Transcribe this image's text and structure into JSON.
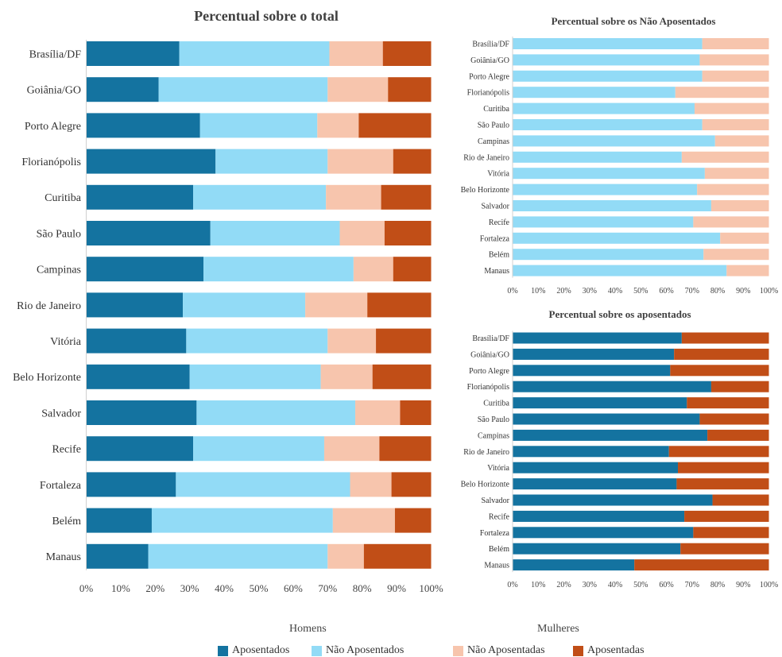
{
  "colors": {
    "aposentados": "#1473a0",
    "nao_aposentados": "#92dbf6",
    "nao_aposentadas": "#f7c5ad",
    "aposentadas": "#c14e17",
    "axis_text": "#333333",
    "grid": "#d9d9d9"
  },
  "legend": {
    "homens_label": "Homens",
    "mulheres_label": "Mulheres",
    "aposentados": "Aposentados",
    "nao_aposentados": "Não Aposentados",
    "nao_aposentadas": "Não Aposentadas",
    "aposentadas": "Aposentadas"
  },
  "chart_data": [
    {
      "id": "total",
      "type": "bar",
      "orientation": "horizontal",
      "stacked": true,
      "title": "Percentual sobre o total",
      "xlim": [
        0,
        100
      ],
      "x_ticks": [
        "0%",
        "10%",
        "20%",
        "30%",
        "40%",
        "50%",
        "60%",
        "70%",
        "80%",
        "90%",
        "100%"
      ],
      "grid": false,
      "categories": [
        "Brasília/DF",
        "Goiânia/GO",
        "Porto Alegre",
        "Florianópolis",
        "Curitiba",
        "São Paulo",
        "Campinas",
        "Rio de Janeiro",
        "Vitória",
        "Belo Horizonte",
        "Salvador",
        "Recife",
        "Fortaleza",
        "Belém",
        "Manaus"
      ],
      "series": [
        {
          "name": "Aposentados",
          "color_key": "aposentados",
          "values": [
            27,
            21,
            33,
            37.5,
            31,
            36,
            34,
            28,
            29,
            30,
            32,
            31,
            26,
            19,
            18
          ]
        },
        {
          "name": "Não Aposentados",
          "color_key": "nao_aposentados",
          "values": [
            43.5,
            49,
            34,
            32.5,
            38.5,
            37.5,
            43.5,
            35.5,
            41,
            38,
            46,
            38,
            50.5,
            52.5,
            52
          ]
        },
        {
          "name": "Não Aposentadas",
          "color_key": "nao_aposentadas",
          "values": [
            15.5,
            17.5,
            12,
            19,
            16,
            13,
            11.5,
            18,
            14,
            15,
            13,
            16,
            12,
            18,
            10.5
          ]
        },
        {
          "name": "Aposentadas",
          "color_key": "aposentadas",
          "values": [
            14,
            12.5,
            21,
            11,
            14.5,
            13.5,
            11,
            18.5,
            16,
            17,
            9,
            15,
            11.5,
            10.5,
            19.5
          ]
        }
      ]
    },
    {
      "id": "nao_aposentados",
      "type": "bar",
      "orientation": "horizontal",
      "stacked": true,
      "title": "Percentual sobre os Não Aposentados",
      "xlim": [
        0,
        100
      ],
      "x_ticks": [
        "0%",
        "10%",
        "20%",
        "30%",
        "40%",
        "50%",
        "60%",
        "70%",
        "80%",
        "90%",
        "100%"
      ],
      "grid": false,
      "categories": [
        "Brasília/DF",
        "Goiânia/GO",
        "Porto Alegre",
        "Florianópolis",
        "Curitiba",
        "São Paulo",
        "Campinas",
        "Rio de Janeiro",
        "Vitória",
        "Belo Horizonte",
        "Salvador",
        "Recife",
        "Fortaleza",
        "Belém",
        "Manaus"
      ],
      "series": [
        {
          "name": "Não Aposentados",
          "color_key": "nao_aposentados",
          "values": [
            74,
            73,
            74,
            63.5,
            71,
            74,
            79,
            66,
            75,
            72,
            77.5,
            70.5,
            81,
            74.5,
            83.5
          ]
        },
        {
          "name": "Não Aposentadas",
          "color_key": "nao_aposentadas",
          "values": [
            26,
            27,
            26,
            36.5,
            29,
            26,
            21,
            34,
            25,
            28,
            22.5,
            29.5,
            19,
            25.5,
            16.5
          ]
        }
      ]
    },
    {
      "id": "aposentados",
      "type": "bar",
      "orientation": "horizontal",
      "stacked": true,
      "title": "Percentual sobre os aposentados",
      "xlim": [
        0,
        100
      ],
      "x_ticks": [
        "0%",
        "10%",
        "20%",
        "30%",
        "40%",
        "50%",
        "60%",
        "70%",
        "80%",
        "90%",
        "100%"
      ],
      "grid": false,
      "categories": [
        "Brasília/DF",
        "Goiânia/GO",
        "Porto Alegre",
        "Florianópolis",
        "Curitiba",
        "São Paulo",
        "Campinas",
        "Rio de Janeiro",
        "Vitória",
        "Belo Horizonte",
        "Salvador",
        "Recife",
        "Fortaleza",
        "Belém",
        "Manaus"
      ],
      "series": [
        {
          "name": "Aposentados",
          "color_key": "aposentados",
          "values": [
            66,
            63,
            61.5,
            77.5,
            68,
            73,
            76,
            61,
            64.5,
            64,
            78,
            67,
            70.5,
            65.5,
            47.5
          ]
        },
        {
          "name": "Aposentadas",
          "color_key": "aposentadas",
          "values": [
            34,
            37,
            38.5,
            22.5,
            32,
            27,
            24,
            39,
            35.5,
            36,
            22,
            33,
            29.5,
            34.5,
            52.5
          ]
        }
      ]
    }
  ]
}
